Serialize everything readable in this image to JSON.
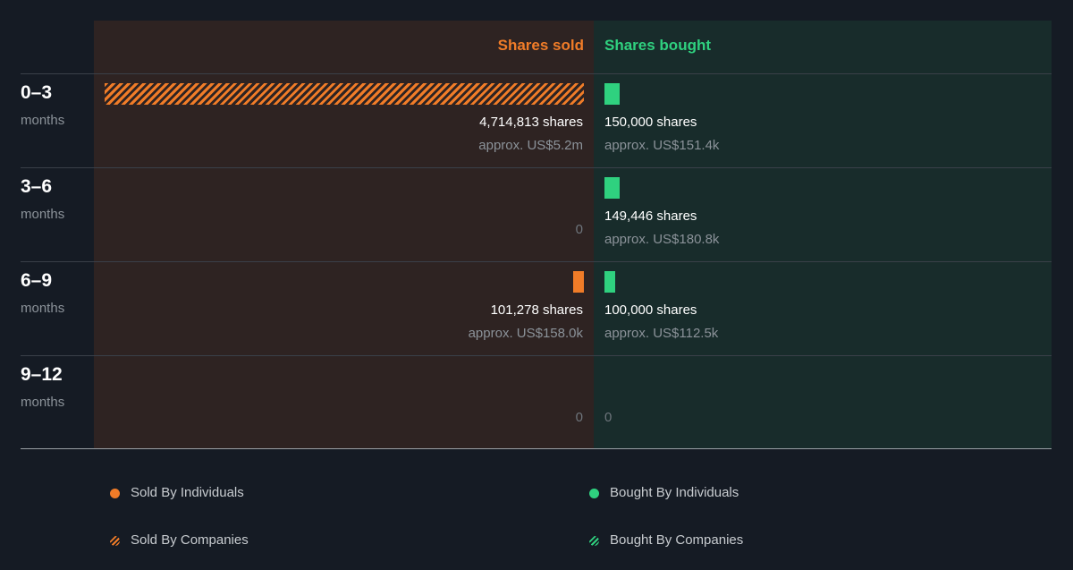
{
  "chart_data": {
    "type": "bar",
    "columns": {
      "sold_label": "Shares sold",
      "bought_label": "Shares bought"
    },
    "max_shares": 4714813,
    "rows": [
      {
        "period": "0–3",
        "unit": "months",
        "sold_shares": 4714813,
        "sold_text": "4,714,813 shares",
        "sold_approx": "approx. US$5.2m",
        "sold_type": "companies",
        "bought_shares": 150000,
        "bought_text": "150,000 shares",
        "bought_approx": "approx. US$151.4k",
        "bought_type": "individuals"
      },
      {
        "period": "3–6",
        "unit": "months",
        "sold_shares": 0,
        "sold_text": "0",
        "sold_approx": "",
        "sold_type": "none",
        "bought_shares": 149446,
        "bought_text": "149,446 shares",
        "bought_approx": "approx. US$180.8k",
        "bought_type": "individuals"
      },
      {
        "period": "6–9",
        "unit": "months",
        "sold_shares": 101278,
        "sold_text": "101,278 shares",
        "sold_approx": "approx. US$158.0k",
        "sold_type": "individuals",
        "bought_shares": 100000,
        "bought_text": "100,000 shares",
        "bought_approx": "approx. US$112.5k",
        "bought_type": "individuals"
      },
      {
        "period": "9–12",
        "unit": "months",
        "sold_shares": 0,
        "sold_text": "0",
        "sold_approx": "",
        "sold_type": "none",
        "bought_shares": 0,
        "bought_text": "0",
        "bought_approx": "",
        "bought_type": "none"
      }
    ],
    "legend": [
      {
        "label": "Sold By Individuals",
        "marker": "dot",
        "color": "#f07c28"
      },
      {
        "label": "Sold By Companies",
        "marker": "hatch",
        "color": "#f07c28"
      },
      {
        "label": "Bought By Individuals",
        "marker": "dot",
        "color": "#2fd17f"
      },
      {
        "label": "Bought By Companies",
        "marker": "hatch",
        "color": "#2fd17f"
      }
    ],
    "colors": {
      "sold": "#f07c28",
      "bought": "#2fd17f",
      "sold_panel": "#2e2322",
      "bought_panel": "#182c2b",
      "background": "#151b24"
    }
  }
}
